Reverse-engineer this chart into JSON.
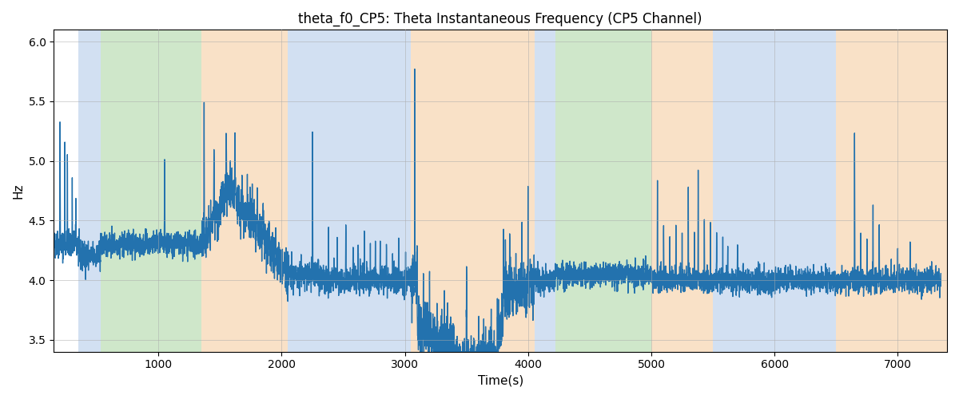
{
  "title": "theta_f0_CP5: Theta Instantaneous Frequency (CP5 Channel)",
  "xlabel": "Time(s)",
  "ylabel": "Hz",
  "ylim": [
    3.4,
    6.1
  ],
  "xlim": [
    150,
    7400
  ],
  "line_color": "#2372ae",
  "line_width": 1.0,
  "bg_color": "#ffffff",
  "grid_color": "#aaaaaa",
  "bands": [
    {
      "start": 350,
      "end": 530,
      "color": "#aec8e8",
      "alpha": 0.55
    },
    {
      "start": 530,
      "end": 1350,
      "color": "#a8d4a0",
      "alpha": 0.55
    },
    {
      "start": 1350,
      "end": 2050,
      "color": "#f5c99a",
      "alpha": 0.55
    },
    {
      "start": 2050,
      "end": 3050,
      "color": "#aec8e8",
      "alpha": 0.55
    },
    {
      "start": 3050,
      "end": 4050,
      "color": "#f5c99a",
      "alpha": 0.55
    },
    {
      "start": 4050,
      "end": 4220,
      "color": "#aec8e8",
      "alpha": 0.55
    },
    {
      "start": 4220,
      "end": 5000,
      "color": "#a8d4a0",
      "alpha": 0.55
    },
    {
      "start": 5000,
      "end": 5500,
      "color": "#f5c99a",
      "alpha": 0.55
    },
    {
      "start": 5500,
      "end": 6500,
      "color": "#aec8e8",
      "alpha": 0.55
    },
    {
      "start": 6500,
      "end": 7400,
      "color": "#f5c99a",
      "alpha": 0.55
    }
  ],
  "seed": 42,
  "n_points": 7300
}
